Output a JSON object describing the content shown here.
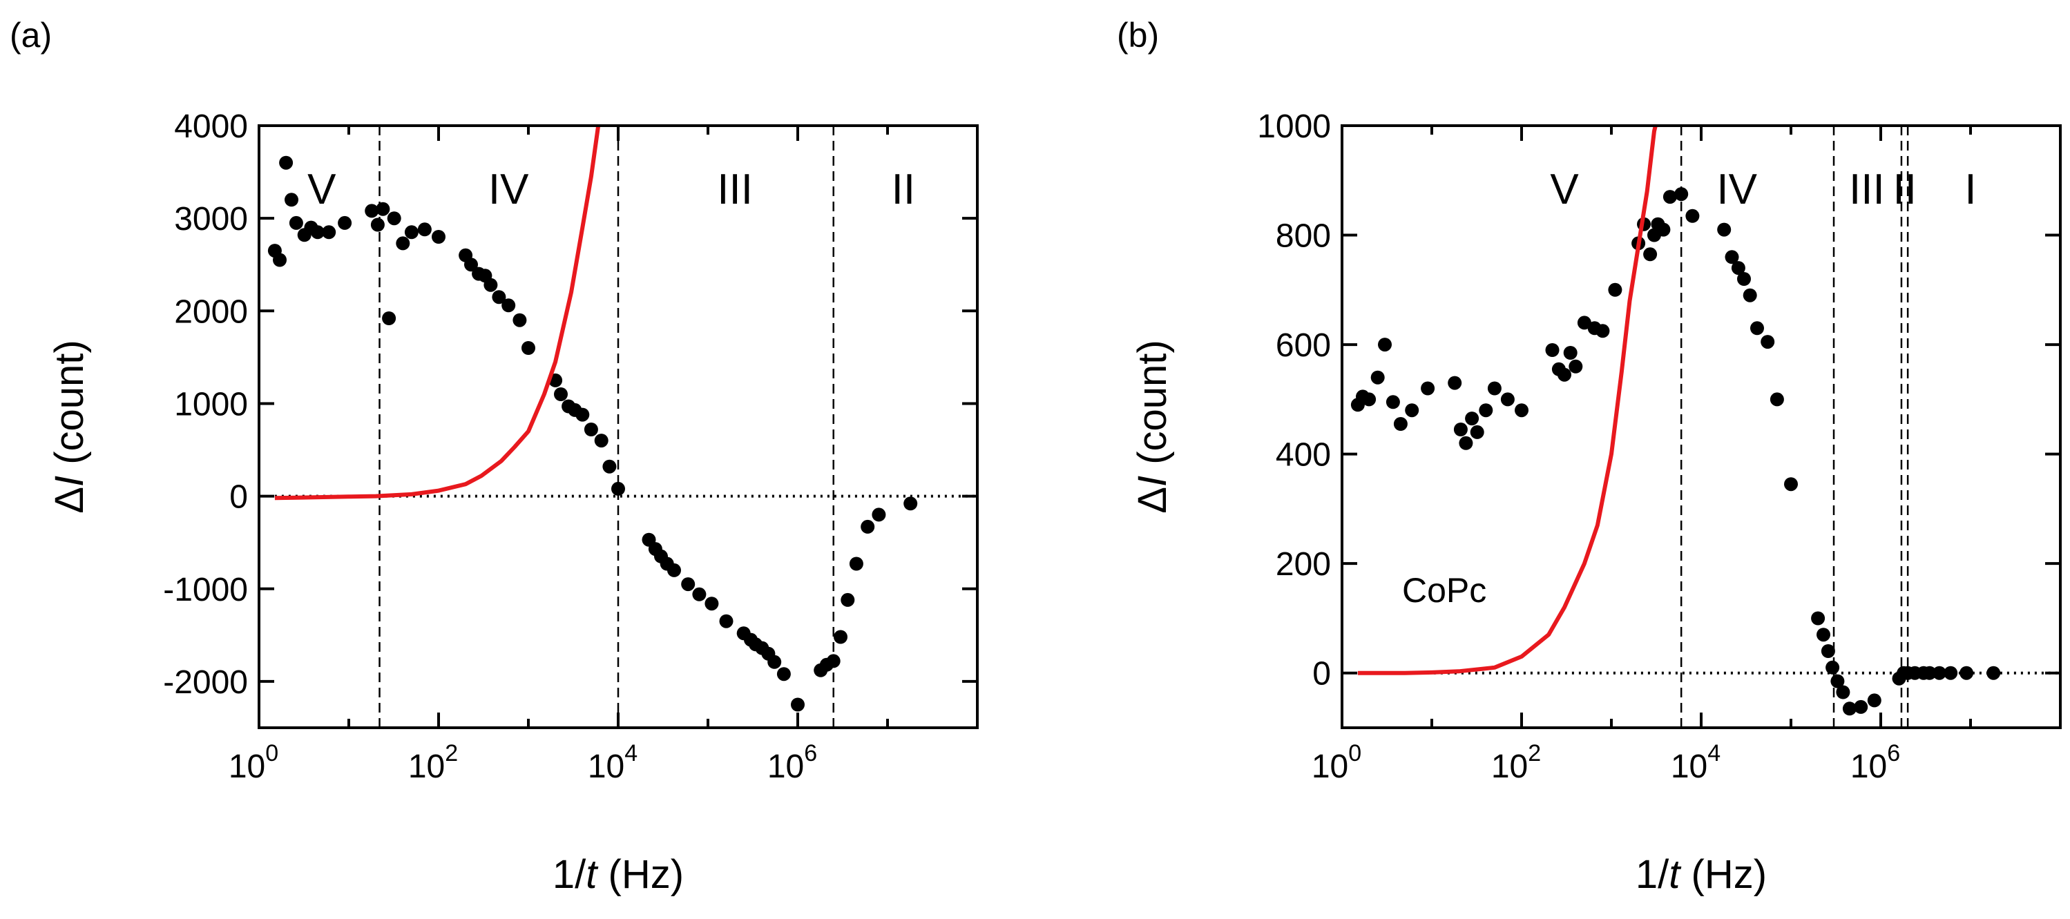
{
  "chart_data": [
    {
      "panel": "(a)",
      "type": "scatter",
      "title": "",
      "xlabel": [
        "1/",
        "t",
        " (Hz)"
      ],
      "ylabel": [
        "Δ",
        "I",
        " (count)"
      ],
      "xscale": "log",
      "xlim": [
        1,
        100000000.0
      ],
      "ylim": [
        -2500,
        4000
      ],
      "xticks": [
        {
          "value": 1,
          "base": "10",
          "exp": "0"
        },
        {
          "value": 100,
          "base": "10",
          "exp": "2"
        },
        {
          "value": 10000,
          "base": "10",
          "exp": "4"
        },
        {
          "value": 1000000,
          "base": "10",
          "exp": "6"
        }
      ],
      "yticks": [
        4000,
        3000,
        2000,
        1000,
        0,
        -1000,
        -2000
      ],
      "ytick_labels": [
        "4000",
        "3000",
        "2000",
        "1000",
        "0",
        "-1000",
        "-2000"
      ],
      "minor_xticks": [
        10,
        1000,
        100000,
        10000000
      ],
      "zero_line": true,
      "dividers": [
        22,
        10000,
        2500000
      ],
      "regions": [
        {
          "label": "V",
          "x": 5
        },
        {
          "label": "IV",
          "x": 600
        },
        {
          "label": "III",
          "x": 200000
        },
        {
          "label": "II",
          "x": 15000000
        }
      ],
      "annotation": "",
      "series": [
        {
          "name": "data",
          "style": "markers",
          "color": "#000000",
          "points": [
            [
              1.5,
              2650
            ],
            [
              1.7,
              2550
            ],
            [
              2.0,
              3600
            ],
            [
              2.3,
              3200
            ],
            [
              2.6,
              2950
            ],
            [
              3.2,
              2820
            ],
            [
              3.8,
              2900
            ],
            [
              4.5,
              2850
            ],
            [
              6.0,
              2850
            ],
            [
              9.0,
              2950
            ],
            [
              18,
              3080
            ],
            [
              21,
              2930
            ],
            [
              24,
              3100
            ],
            [
              28,
              1920
            ],
            [
              32,
              3000
            ],
            [
              40,
              2730
            ],
            [
              50,
              2850
            ],
            [
              70,
              2880
            ],
            [
              100,
              2800
            ],
            [
              200,
              2600
            ],
            [
              230,
              2500
            ],
            [
              280,
              2400
            ],
            [
              330,
              2380
            ],
            [
              380,
              2280
            ],
            [
              470,
              2150
            ],
            [
              600,
              2060
            ],
            [
              800,
              1900
            ],
            [
              1000,
              1600
            ],
            [
              2000,
              1250
            ],
            [
              2300,
              1100
            ],
            [
              2800,
              970
            ],
            [
              3300,
              930
            ],
            [
              4000,
              880
            ],
            [
              5000,
              720
            ],
            [
              6500,
              600
            ],
            [
              8000,
              320
            ],
            [
              10000,
              80
            ],
            [
              22000,
              -470
            ],
            [
              26000,
              -570
            ],
            [
              30000,
              -650
            ],
            [
              35000,
              -730
            ],
            [
              42000,
              -800
            ],
            [
              60000,
              -950
            ],
            [
              80000,
              -1060
            ],
            [
              110000,
              -1160
            ],
            [
              160000,
              -1350
            ],
            [
              250000,
              -1480
            ],
            [
              300000,
              -1550
            ],
            [
              340000,
              -1600
            ],
            [
              400000,
              -1640
            ],
            [
              470000,
              -1700
            ],
            [
              550000,
              -1790
            ],
            [
              700000,
              -1920
            ],
            [
              1000000,
              -2250
            ],
            [
              1800000,
              -1880
            ],
            [
              2100000,
              -1820
            ],
            [
              2500000,
              -1780
            ],
            [
              3000000,
              -1520
            ],
            [
              3600000,
              -1120
            ],
            [
              4500000,
              -730
            ],
            [
              6000000,
              -330
            ],
            [
              8000000,
              -200
            ],
            [
              18000000,
              -80
            ]
          ]
        },
        {
          "name": "fit",
          "style": "line",
          "color": "#e8191e",
          "points": [
            [
              1.5,
              -20
            ],
            [
              3,
              -15
            ],
            [
              10,
              -5
            ],
            [
              20,
              0
            ],
            [
              50,
              20
            ],
            [
              100,
              60
            ],
            [
              200,
              130
            ],
            [
              300,
              220
            ],
            [
              500,
              380
            ],
            [
              700,
              530
            ],
            [
              1000,
              700
            ],
            [
              1500,
              1100
            ],
            [
              2000,
              1450
            ],
            [
              3000,
              2200
            ],
            [
              4000,
              2900
            ],
            [
              5000,
              3450
            ],
            [
              6000,
              4000
            ]
          ]
        }
      ]
    },
    {
      "panel": "(b)",
      "type": "scatter",
      "title": "",
      "xlabel": [
        "1/",
        "t",
        " (Hz)"
      ],
      "ylabel": [
        "Δ",
        "I",
        " (count)"
      ],
      "xscale": "log",
      "xlim": [
        1,
        100000000.0
      ],
      "ylim": [
        -100,
        1000
      ],
      "xticks": [
        {
          "value": 1,
          "base": "10",
          "exp": "0"
        },
        {
          "value": 100,
          "base": "10",
          "exp": "2"
        },
        {
          "value": 10000,
          "base": "10",
          "exp": "4"
        },
        {
          "value": 1000000,
          "base": "10",
          "exp": "6"
        }
      ],
      "yticks": [
        1000,
        800,
        600,
        400,
        200,
        0
      ],
      "ytick_labels": [
        "1000",
        "800",
        "600",
        "400",
        "200",
        "0"
      ],
      "minor_xticks": [
        10,
        1000,
        100000,
        10000000
      ],
      "zero_line": true,
      "dividers": [
        6000,
        300000,
        1700000,
        2000000
      ],
      "regions": [
        {
          "label": "V",
          "x": 300
        },
        {
          "label": "IV",
          "x": 25000
        },
        {
          "label": "III",
          "x": 700000
        },
        {
          "label": "II",
          "x": 1850000
        },
        {
          "label": "I",
          "x": 10000000
        }
      ],
      "annotation": "CoPc",
      "series": [
        {
          "name": "data",
          "style": "markers",
          "color": "#000000",
          "points": [
            [
              1.5,
              490
            ],
            [
              1.7,
              505
            ],
            [
              2.0,
              500
            ],
            [
              2.5,
              540
            ],
            [
              3.0,
              600
            ],
            [
              3.7,
              495
            ],
            [
              4.5,
              455
            ],
            [
              6.0,
              480
            ],
            [
              9.0,
              520
            ],
            [
              18,
              530
            ],
            [
              21,
              445
            ],
            [
              24,
              420
            ],
            [
              28,
              465
            ],
            [
              32,
              440
            ],
            [
              40,
              480
            ],
            [
              50,
              520
            ],
            [
              70,
              500
            ],
            [
              100,
              480
            ],
            [
              220,
              590
            ],
            [
              260,
              555
            ],
            [
              300,
              545
            ],
            [
              350,
              585
            ],
            [
              400,
              560
            ],
            [
              500,
              640
            ],
            [
              650,
              630
            ],
            [
              800,
              625
            ],
            [
              1100,
              700
            ],
            [
              2000,
              785
            ],
            [
              2300,
              820
            ],
            [
              2700,
              765
            ],
            [
              3000,
              800
            ],
            [
              3300,
              820
            ],
            [
              3800,
              810
            ],
            [
              4500,
              870
            ],
            [
              6000,
              875
            ],
            [
              8000,
              835
            ],
            [
              18000,
              810
            ],
            [
              22000,
              760
            ],
            [
              26000,
              740
            ],
            [
              30000,
              720
            ],
            [
              35000,
              690
            ],
            [
              42000,
              630
            ],
            [
              55000,
              605
            ],
            [
              70000,
              500
            ],
            [
              100000,
              345
            ],
            [
              200000,
              100
            ],
            [
              230000,
              70
            ],
            [
              260000,
              40
            ],
            [
              290000,
              10
            ],
            [
              330000,
              -15
            ],
            [
              380000,
              -35
            ],
            [
              450000,
              -65
            ],
            [
              600000,
              -62
            ],
            [
              850000,
              -50
            ],
            [
              1600000,
              -10
            ],
            [
              1800000,
              0
            ],
            [
              2000000,
              0
            ],
            [
              2400000,
              0
            ],
            [
              3000000,
              0
            ],
            [
              3500000,
              0
            ],
            [
              4500000,
              0
            ],
            [
              6000000,
              0
            ],
            [
              9000000,
              0
            ],
            [
              18000000,
              0
            ]
          ]
        },
        {
          "name": "fit",
          "style": "line",
          "color": "#e8191e",
          "points": [
            [
              1.5,
              0
            ],
            [
              5,
              0
            ],
            [
              10,
              1
            ],
            [
              20,
              3
            ],
            [
              50,
              10
            ],
            [
              100,
              30
            ],
            [
              200,
              70
            ],
            [
              300,
              120
            ],
            [
              500,
              200
            ],
            [
              700,
              270
            ],
            [
              1000,
              400
            ],
            [
              1300,
              550
            ],
            [
              1600,
              680
            ],
            [
              2000,
              780
            ],
            [
              2500,
              880
            ],
            [
              3000,
              990
            ],
            [
              3100,
              1000
            ]
          ]
        }
      ]
    }
  ]
}
